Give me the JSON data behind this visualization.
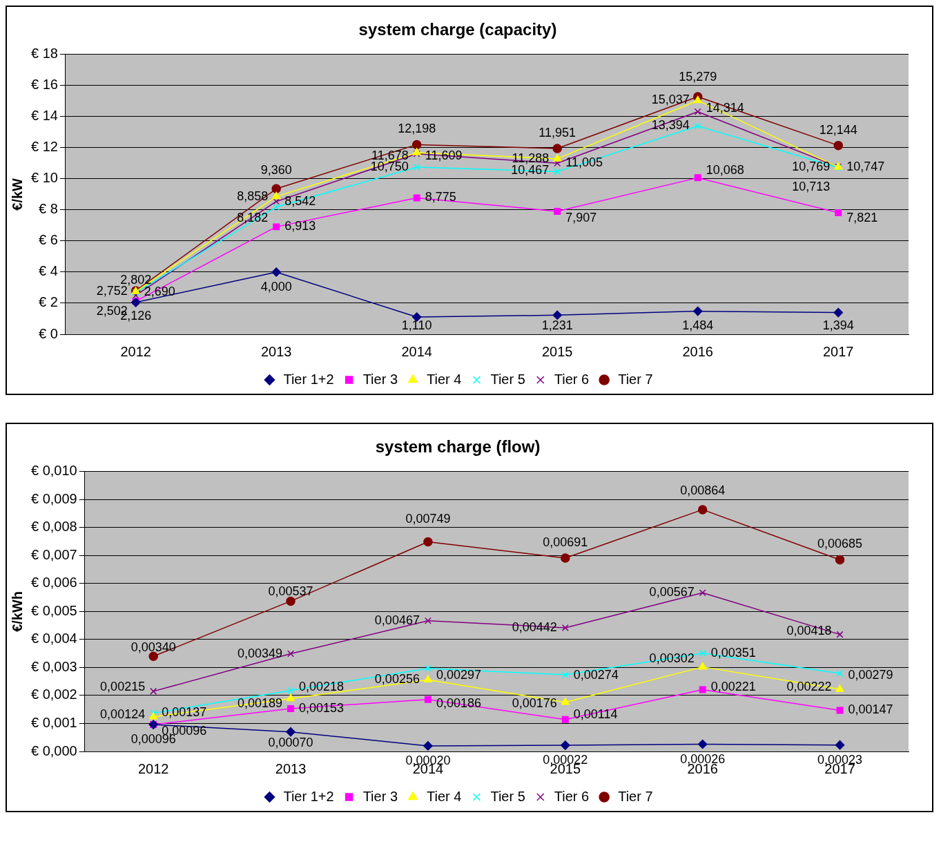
{
  "chart_data": [
    {
      "type": "line",
      "title": "system charge (capacity)",
      "ylabel": "€/kW",
      "categories": [
        "2012",
        "2013",
        "2014",
        "2015",
        "2016",
        "2017"
      ],
      "ylim": [
        0,
        18
      ],
      "yticks": [
        {
          "value": 0,
          "label": "€ 0"
        },
        {
          "value": 2,
          "label": "€ 2"
        },
        {
          "value": 4,
          "label": "€ 4"
        },
        {
          "value": 6,
          "label": "€ 6"
        },
        {
          "value": 8,
          "label": "€ 8"
        },
        {
          "value": 10,
          "label": "€ 10"
        },
        {
          "value": 12,
          "label": "€ 12"
        },
        {
          "value": 14,
          "label": "€ 14"
        },
        {
          "value": 16,
          "label": "€ 16"
        },
        {
          "value": 18,
          "label": "€ 18"
        }
      ],
      "grid": "y",
      "legend": "bottom",
      "series": [
        {
          "name": "Tier 1+2",
          "color": "#000080",
          "marker": "diamond",
          "values": [
            2.05,
            4.0,
            1.11,
            1.231,
            1.484,
            1.394
          ],
          "value_labels": [
            null,
            "4,000",
            "1,110",
            "1,231",
            "1,484",
            "1,394"
          ]
        },
        {
          "name": "Tier 3",
          "color": "#ff00ff",
          "marker": "square",
          "values": [
            2.126,
            6.913,
            8.775,
            7.907,
            10.068,
            7.821
          ],
          "value_labels": [
            "2,126",
            "6,913",
            "8,775",
            "7,907",
            "10,068",
            "7,821"
          ]
        },
        {
          "name": "Tier 4",
          "color": "#ffff00",
          "marker": "triangle",
          "values": [
            2.752,
            8.858,
            11.678,
            11.288,
            15.037,
            10.747
          ],
          "value_labels": [
            "2,752",
            "8,858",
            "11,678",
            "11,288",
            "15,037",
            "10,747"
          ]
        },
        {
          "name": "Tier 5",
          "color": "#00ffff",
          "marker": "cross",
          "values": [
            2.69,
            8.182,
            10.75,
            10.467,
            13.394,
            10.713
          ],
          "value_labels": [
            "2,690",
            "8,182",
            "10,750",
            "10,467",
            "13,394",
            "10,713"
          ]
        },
        {
          "name": "Tier 6",
          "color": "#800080",
          "marker": "cross",
          "values": [
            2.502,
            8.542,
            11.609,
            11.005,
            14.314,
            10.769
          ],
          "value_labels": [
            "2,502",
            "8,542",
            "11,609",
            "11,005",
            "14,314",
            "10,769"
          ]
        },
        {
          "name": "Tier 7",
          "color": "#800000",
          "marker": "circle",
          "values": [
            2.802,
            9.36,
            12.198,
            11.951,
            15.279,
            12.144
          ],
          "value_labels": [
            "2,802",
            "9,360",
            "12,198",
            "11,951",
            "15,279",
            "12,144"
          ]
        }
      ]
    },
    {
      "type": "line",
      "title": "system charge (flow)",
      "ylabel": "€/kWh",
      "categories": [
        "2012",
        "2013",
        "2014",
        "2015",
        "2016",
        "2017"
      ],
      "ylim": [
        0,
        0.01
      ],
      "yticks": [
        {
          "value": 0,
          "label": "€ 0,000"
        },
        {
          "value": 0.001,
          "label": "€ 0,001"
        },
        {
          "value": 0.002,
          "label": "€ 0,002"
        },
        {
          "value": 0.003,
          "label": "€ 0,003"
        },
        {
          "value": 0.004,
          "label": "€ 0,004"
        },
        {
          "value": 0.005,
          "label": "€ 0,005"
        },
        {
          "value": 0.006,
          "label": "€ 0,006"
        },
        {
          "value": 0.007,
          "label": "€ 0,007"
        },
        {
          "value": 0.008,
          "label": "€ 0,008"
        },
        {
          "value": 0.009,
          "label": "€ 0,009"
        },
        {
          "value": 0.01,
          "label": "€ 0,010"
        }
      ],
      "grid": "y",
      "legend": "bottom",
      "series": [
        {
          "name": "Tier 1+2",
          "color": "#000080",
          "marker": "diamond",
          "values": [
            0.00096,
            0.0007,
            0.0002,
            0.00022,
            0.00026,
            0.00023
          ],
          "value_labels": [
            "0,00096",
            "0,00070",
            "0,00020",
            "0,00022",
            "0,00026",
            "0,00023"
          ]
        },
        {
          "name": "Tier 3",
          "color": "#ff00ff",
          "marker": "square",
          "values": [
            0.00096,
            0.00153,
            0.00186,
            0.00114,
            0.00221,
            0.00147
          ],
          "value_labels": [
            "0,00096",
            "0,00153",
            "0,00186",
            "0,00114",
            "0,00221",
            "0,00147"
          ]
        },
        {
          "name": "Tier 4",
          "color": "#ffff00",
          "marker": "triangle",
          "values": [
            0.00124,
            0.00189,
            0.00256,
            0.00176,
            0.00302,
            0.00222
          ],
          "value_labels": [
            "0,00124",
            "0,00189",
            "0,00256",
            "0,00176",
            "0,00302",
            "0,00222"
          ]
        },
        {
          "name": "Tier 5",
          "color": "#00ffff",
          "marker": "cross",
          "values": [
            0.00137,
            0.00218,
            0.00297,
            0.00274,
            0.00351,
            0.00279
          ],
          "value_labels": [
            "0,00137",
            "0,00218",
            "0,00297",
            "0,00274",
            "0,00351",
            "0,00279"
          ]
        },
        {
          "name": "Tier 6",
          "color": "#800080",
          "marker": "cross",
          "values": [
            0.00215,
            0.00349,
            0.00467,
            0.00442,
            0.00567,
            0.00418
          ],
          "value_labels": [
            "0,00215",
            "0,00349",
            "0,00467",
            "0,00442",
            "0,00567",
            "0,00418"
          ]
        },
        {
          "name": "Tier 7",
          "color": "#800000",
          "marker": "circle",
          "values": [
            0.0034,
            0.00537,
            0.00749,
            0.00691,
            0.00864,
            0.00685
          ],
          "value_labels": [
            "0,00340",
            "0,00537",
            "0,00749",
            "0,00691",
            "0,00864",
            "0,00685"
          ]
        }
      ]
    }
  ]
}
